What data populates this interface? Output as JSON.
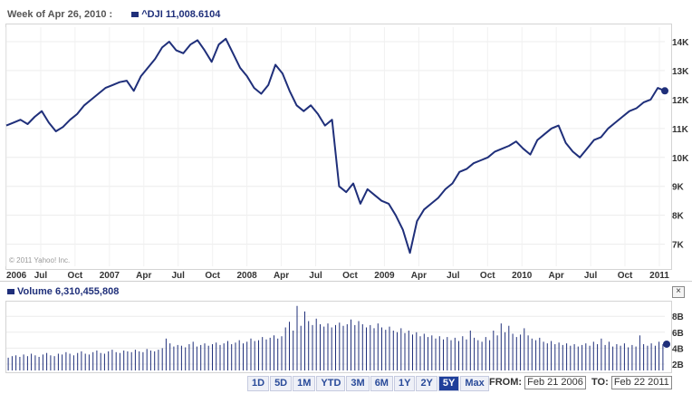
{
  "header": {
    "week_label": "Week of Apr 26, 2010 :",
    "symbol": "^DJI",
    "value": "11,008.6104"
  },
  "copyright": "© 2011 Yahoo! Inc.",
  "volume_header": {
    "label": "Volume",
    "value": "6,310,455,808"
  },
  "close_label": "×",
  "range_buttons": [
    "1D",
    "5D",
    "1M",
    "YTD",
    "3M",
    "6M",
    "1Y",
    "2Y",
    "5Y",
    "Max"
  ],
  "active_range": "5Y",
  "date_range": {
    "from_label": "FROM:",
    "from_value": "Feb 21 2006",
    "to_label": "TO:",
    "to_value": "Feb 22 2011"
  },
  "colors": {
    "line": "#1f2f7a",
    "volume": "#1f2f7a"
  },
  "chart_data": [
    {
      "type": "line",
      "series": [
        {
          "values": [
            11100,
            11200,
            11300,
            11150,
            11400,
            11600,
            11200,
            10900,
            11050,
            11300,
            11500,
            11800,
            12000,
            12200,
            12400,
            12500,
            12600,
            12650,
            12300,
            12800,
            13100,
            13400,
            13800,
            14000,
            13700,
            13600,
            13900,
            14050,
            13700,
            13300,
            13900,
            14100,
            13600,
            13100,
            12800,
            12400,
            12200,
            12500,
            13200,
            12900,
            12300,
            11800,
            11600,
            11800,
            11500,
            11100,
            11300,
            9000,
            8800,
            9100,
            8400,
            8900,
            8700,
            8500,
            8400,
            8000,
            7500,
            6700,
            7800,
            8200,
            8400,
            8600,
            8900,
            9100,
            9500,
            9600,
            9800,
            9900,
            10000,
            10200,
            10300,
            10400,
            10550,
            10300,
            10100,
            10600,
            10800,
            11000,
            11100,
            10500,
            10200,
            10000,
            10300,
            10600,
            10700,
            11000,
            11200,
            11400,
            11600,
            11700,
            11900,
            12000,
            12400,
            12300
          ]
        }
      ],
      "x_labels": [
        "2006",
        "Jul",
        "Oct",
        "2007",
        "Apr",
        "Jul",
        "Oct",
        "2008",
        "Apr",
        "Jul",
        "Oct",
        "2009",
        "Apr",
        "Jul",
        "Oct",
        "2010",
        "Apr",
        "Jul",
        "Oct",
        "2011"
      ],
      "y_labels": [
        "7K",
        "8K",
        "9K",
        "10K",
        "11K",
        "12K",
        "13K",
        "14K"
      ],
      "ylim": [
        6300,
        14500
      ]
    },
    {
      "type": "bar",
      "series": [
        {
          "values": [
            2.8,
            3.0,
            3.1,
            2.9,
            3.2,
            3.0,
            3.3,
            3.1,
            2.9,
            3.2,
            3.4,
            3.1,
            3.0,
            3.3,
            3.2,
            3.5,
            3.3,
            3.1,
            3.4,
            3.6,
            3.3,
            3.2,
            3.5,
            3.7,
            3.4,
            3.3,
            3.6,
            3.8,
            3.5,
            3.4,
            3.7,
            3.6,
            3.5,
            3.8,
            3.6,
            3.5,
            3.9,
            3.7,
            3.6,
            3.8,
            4.0,
            5.2,
            4.6,
            4.2,
            4.4,
            4.3,
            4.1,
            4.5,
            4.8,
            4.2,
            4.4,
            4.6,
            4.3,
            4.5,
            4.7,
            4.4,
            4.6,
            4.9,
            4.5,
            4.7,
            5.0,
            4.6,
            4.8,
            5.2,
            4.9,
            5.0,
            5.4,
            5.1,
            5.3,
            5.6,
            5.2,
            5.5,
            6.6,
            7.3,
            6.2,
            9.3,
            6.8,
            8.6,
            7.4,
            6.9,
            7.7,
            7.0,
            6.7,
            7.1,
            6.6,
            6.9,
            7.2,
            6.8,
            7.0,
            7.6,
            6.9,
            7.4,
            7.0,
            6.6,
            6.9,
            6.5,
            7.1,
            6.6,
            6.3,
            6.7,
            6.2,
            6.0,
            6.5,
            5.9,
            6.2,
            5.7,
            6.0,
            5.5,
            5.8,
            5.4,
            5.6,
            5.2,
            5.5,
            5.1,
            5.4,
            5.0,
            5.3,
            4.9,
            5.5,
            5.1,
            6.2,
            5.3,
            5.0,
            4.8,
            5.4,
            5.0,
            6.2,
            5.6,
            7.1,
            6.0,
            6.8,
            5.8,
            5.4,
            5.7,
            6.5,
            5.6,
            5.2,
            5.0,
            5.3,
            4.8,
            4.6,
            4.9,
            4.5,
            4.7,
            4.4,
            4.6,
            4.3,
            4.5,
            4.2,
            4.4,
            4.6,
            4.3,
            4.8,
            4.5,
            5.2,
            4.4,
            4.8,
            4.2,
            4.5,
            4.3,
            4.6,
            4.1,
            4.4,
            4.2,
            5.6,
            4.5,
            4.3,
            4.6,
            4.3,
            4.8,
            4.5
          ]
        }
      ],
      "y_labels": [
        "2B",
        "4B",
        "6B",
        "8B"
      ],
      "ylim": [
        1.2,
        9.5
      ]
    }
  ]
}
